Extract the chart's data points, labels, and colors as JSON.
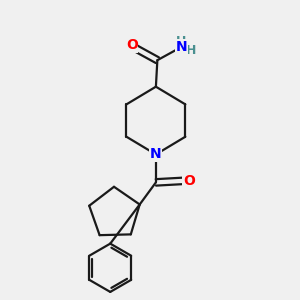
{
  "background_color": "#f0f0f0",
  "atom_colors": {
    "O": "#ff0000",
    "N": "#0000ff",
    "H": "#4a9090",
    "C": "#000000"
  },
  "bond_color": "#1a1a1a",
  "bond_width": 1.6,
  "fig_width": 3.0,
  "fig_height": 3.0,
  "dpi": 100
}
